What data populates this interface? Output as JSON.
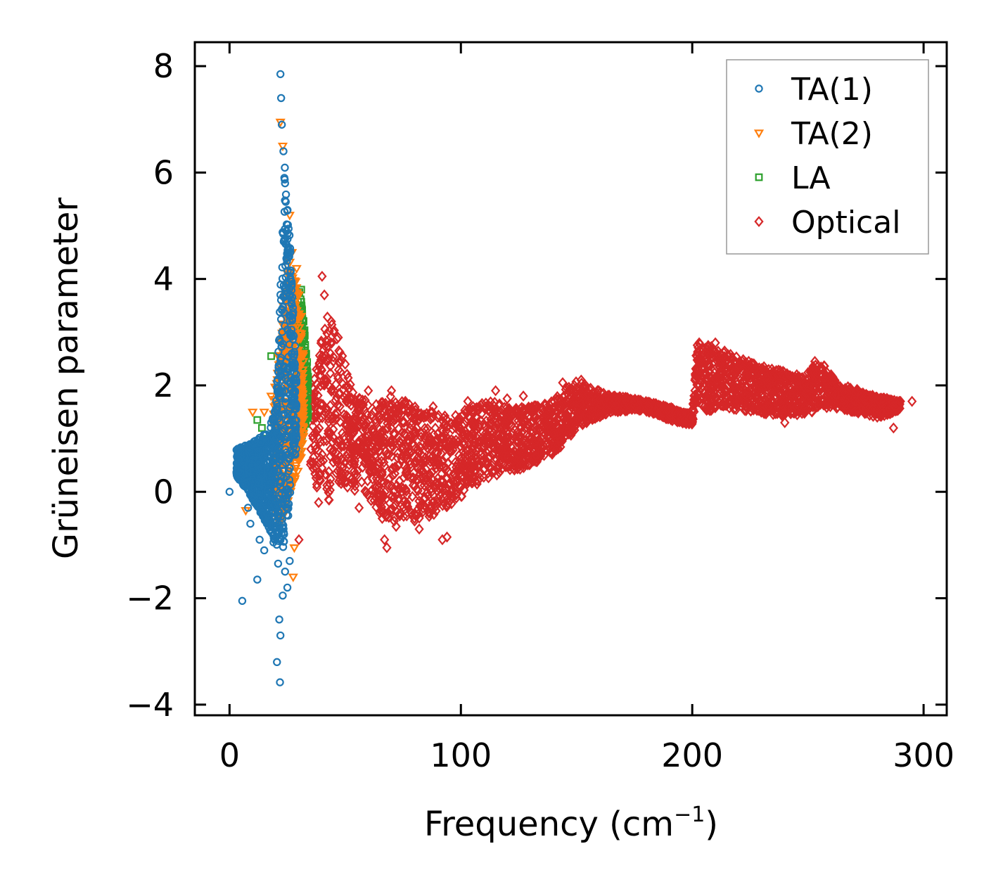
{
  "chart_data": {
    "type": "scatter",
    "title": "",
    "xlabel": "Frequency (cm",
    "xlabel_sup": "−1",
    "xlabel_close": ")",
    "ylabel": "Grüneisen parameter",
    "xlim": [
      -15,
      310
    ],
    "ylim": [
      -4.2,
      8.45
    ],
    "xticks": [
      0,
      100,
      200,
      300
    ],
    "xtick_labels": [
      "0",
      "100",
      "200",
      "300"
    ],
    "yticks": [
      -4,
      -2,
      0,
      2,
      4,
      6,
      8
    ],
    "ytick_labels": [
      "−4",
      "−2",
      "0",
      "2",
      "4",
      "6",
      "8"
    ],
    "grid": false,
    "legend_position": "top-right",
    "series": [
      {
        "name": "TA(1)",
        "marker": "circle",
        "color": "#1f77b4",
        "points": [
          [
            0,
            0
          ],
          [
            4,
            0.6
          ],
          [
            5.5,
            -2.05
          ],
          [
            7,
            0.15
          ],
          [
            8,
            -0.3
          ],
          [
            9,
            -0.6
          ],
          [
            10,
            0.5
          ],
          [
            11,
            0.95
          ],
          [
            12,
            -1.65
          ],
          [
            13,
            -0.9
          ],
          [
            14,
            0.3
          ],
          [
            15,
            -1.1
          ],
          [
            16,
            0.8
          ],
          [
            17,
            -0.5
          ],
          [
            18,
            1.3
          ],
          [
            19,
            -0.95
          ],
          [
            20,
            1.55
          ],
          [
            20.5,
            -3.2
          ],
          [
            21,
            -1.35
          ],
          [
            21.5,
            -2.4
          ],
          [
            21.8,
            -3.58
          ],
          [
            22,
            -2.7
          ],
          [
            22,
            7.85
          ],
          [
            22.3,
            7.4
          ],
          [
            22.6,
            6.9
          ],
          [
            23,
            -1.95
          ],
          [
            23.3,
            6.4
          ],
          [
            23.7,
            5.9
          ],
          [
            24,
            -1.5
          ],
          [
            24.3,
            5.45
          ],
          [
            24.6,
            4.9
          ],
          [
            25,
            -1.8
          ],
          [
            25.2,
            4.4
          ],
          [
            25.5,
            3.9
          ],
          [
            26,
            -1.3
          ],
          [
            26.5,
            3.3
          ],
          [
            27,
            2.6
          ],
          [
            28,
            1.9
          ]
        ],
        "bands": [
          [
            3,
            0.3,
            0.8
          ],
          [
            8,
            0.0,
            0.9
          ],
          [
            12,
            -0.3,
            1.0
          ],
          [
            16,
            -0.6,
            1.1
          ],
          [
            18,
            -0.8,
            1.3
          ],
          [
            20,
            -1.0,
            1.6
          ],
          [
            21,
            -1.2,
            2.5
          ],
          [
            22,
            -1.3,
            3.8
          ],
          [
            23,
            -1.2,
            5.6
          ],
          [
            24,
            -1.0,
            6.2
          ],
          [
            25,
            -0.6,
            5.5
          ],
          [
            26,
            -0.2,
            4.8
          ],
          [
            27,
            0.3,
            3.9
          ],
          [
            28,
            0.6,
            3.0
          ],
          [
            29,
            0.8,
            2.2
          ]
        ]
      },
      {
        "name": "TA(2)",
        "marker": "triangle-down",
        "color": "#ff7f0e",
        "points": [
          [
            7,
            -0.35
          ],
          [
            8,
            0.5
          ],
          [
            10,
            1.5
          ],
          [
            13,
            0.7
          ],
          [
            15,
            1.5
          ],
          [
            16,
            -0.45
          ],
          [
            18,
            1.8
          ],
          [
            19,
            -0.3
          ],
          [
            21,
            1.4
          ],
          [
            22,
            6.95
          ],
          [
            23,
            6.5
          ],
          [
            26,
            5.2
          ],
          [
            27,
            4.5
          ],
          [
            28,
            -1.05
          ],
          [
            27.5,
            -1.6
          ],
          [
            29,
            4.2
          ],
          [
            30,
            3.7
          ],
          [
            31,
            3.3
          ]
        ],
        "bands": [
          [
            19,
            -0.4,
            1.8
          ],
          [
            21,
            -0.6,
            2.4
          ],
          [
            23,
            -0.6,
            3.5
          ],
          [
            25,
            -0.3,
            4.4
          ],
          [
            27,
            0.0,
            4.3
          ],
          [
            29,
            0.3,
            3.9
          ],
          [
            31,
            0.6,
            3.0
          ],
          [
            32,
            1.0,
            2.5
          ]
        ]
      },
      {
        "name": "LA",
        "marker": "square",
        "color": "#2ca02c",
        "points": [
          [
            18,
            2.55
          ],
          [
            12,
            1.35
          ],
          [
            14,
            1.2
          ],
          [
            16,
            1.0
          ],
          [
            19,
            0.6
          ],
          [
            31,
            3.8
          ],
          [
            32,
            3.2
          ]
        ],
        "bands": [
          [
            29,
            0.6,
            3.5
          ],
          [
            30,
            0.8,
            3.9
          ],
          [
            31,
            1.0,
            3.6
          ],
          [
            32,
            1.1,
            3.3
          ],
          [
            33,
            1.3,
            2.8
          ],
          [
            34,
            1.4,
            2.2
          ]
        ]
      },
      {
        "name": "Optical",
        "marker": "diamond",
        "color": "#d62728",
        "points": [
          [
            30,
            -0.9
          ],
          [
            40,
            4.05
          ],
          [
            41,
            3.7
          ],
          [
            44,
            3.2
          ],
          [
            47,
            2.9
          ],
          [
            50,
            2.4
          ],
          [
            53,
            1.2
          ],
          [
            56,
            -0.3
          ],
          [
            60,
            1.9
          ],
          [
            63,
            0.0
          ],
          [
            65,
            -0.4
          ],
          [
            66,
            -0.5
          ],
          [
            67,
            -0.9
          ],
          [
            68,
            -1.05
          ],
          [
            70,
            1.9
          ],
          [
            72,
            -0.65
          ],
          [
            76,
            1.7
          ],
          [
            80,
            -0.55
          ],
          [
            82,
            -0.7
          ],
          [
            88,
            1.6
          ],
          [
            92,
            -0.9
          ],
          [
            94,
            -0.85
          ],
          [
            103,
            1.7
          ],
          [
            115,
            1.9
          ],
          [
            120,
            1.75
          ],
          [
            127,
            1.8
          ],
          [
            144,
            2.05
          ],
          [
            152,
            2.1
          ],
          [
            175,
            1.7
          ],
          [
            190,
            1.5
          ],
          [
            200,
            1.3
          ],
          [
            203,
            2.8
          ],
          [
            210,
            2.8
          ],
          [
            240,
            1.3
          ],
          [
            253,
            2.45
          ],
          [
            260,
            2.2
          ],
          [
            275,
            1.8
          ],
          [
            287,
            1.2
          ],
          [
            290,
            1.7
          ],
          [
            295,
            1.7
          ]
        ],
        "bands": [
          [
            35,
            0.4,
            1.8
          ],
          [
            38,
            -0.2,
            2.5
          ],
          [
            42,
            -0.3,
            3.4
          ],
          [
            46,
            0.2,
            3.0
          ],
          [
            50,
            0.1,
            2.4
          ],
          [
            55,
            0.0,
            1.8
          ],
          [
            60,
            -0.1,
            1.7
          ],
          [
            65,
            -0.4,
            1.7
          ],
          [
            70,
            -0.6,
            1.8
          ],
          [
            75,
            -0.5,
            1.7
          ],
          [
            80,
            -0.5,
            1.6
          ],
          [
            85,
            -0.5,
            1.5
          ],
          [
            90,
            -0.4,
            1.5
          ],
          [
            95,
            -0.3,
            1.4
          ],
          [
            100,
            -0.1,
            1.5
          ],
          [
            105,
            0.1,
            1.6
          ],
          [
            110,
            0.2,
            1.7
          ],
          [
            115,
            0.3,
            1.7
          ],
          [
            120,
            0.4,
            1.6
          ],
          [
            125,
            0.4,
            1.6
          ],
          [
            130,
            0.5,
            1.6
          ],
          [
            135,
            0.6,
            1.7
          ],
          [
            140,
            0.7,
            1.7
          ],
          [
            145,
            0.9,
            2.0
          ],
          [
            150,
            1.2,
            2.1
          ],
          [
            155,
            1.3,
            2.0
          ],
          [
            160,
            1.4,
            1.9
          ],
          [
            165,
            1.5,
            1.8
          ],
          [
            170,
            1.5,
            1.8
          ],
          [
            175,
            1.55,
            1.75
          ],
          [
            180,
            1.5,
            1.7
          ],
          [
            185,
            1.45,
            1.65
          ],
          [
            190,
            1.35,
            1.6
          ],
          [
            195,
            1.3,
            1.5
          ],
          [
            200,
            1.25,
            1.45
          ],
          [
            202,
            1.7,
            2.8
          ],
          [
            207,
            1.5,
            2.75
          ],
          [
            212,
            1.6,
            2.7
          ],
          [
            217,
            1.55,
            2.6
          ],
          [
            222,
            1.5,
            2.5
          ],
          [
            227,
            1.5,
            2.4
          ],
          [
            232,
            1.45,
            2.35
          ],
          [
            237,
            1.45,
            2.3
          ],
          [
            242,
            1.4,
            2.25
          ],
          [
            247,
            1.45,
            2.2
          ],
          [
            252,
            1.5,
            2.4
          ],
          [
            256,
            1.55,
            2.45
          ],
          [
            260,
            1.55,
            2.2
          ],
          [
            265,
            1.55,
            2.0
          ],
          [
            270,
            1.5,
            1.95
          ],
          [
            275,
            1.45,
            1.85
          ],
          [
            280,
            1.4,
            1.8
          ],
          [
            285,
            1.45,
            1.75
          ],
          [
            290,
            1.55,
            1.7
          ]
        ]
      }
    ]
  }
}
